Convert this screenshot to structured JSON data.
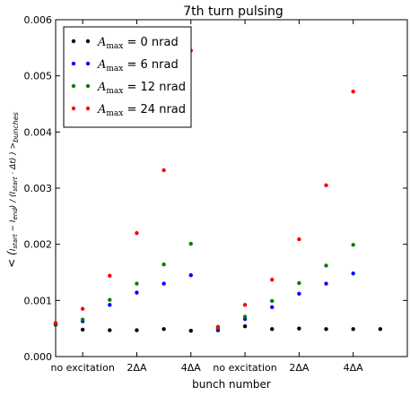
{
  "chart_data": {
    "type": "scatter",
    "title": "7th turn pulsing",
    "xlabel": "bunch number",
    "ylabel": "< (I_start - I_end) / (I_start · Δt) >_bunches",
    "ylim": [
      0,
      0.006
    ],
    "xlim": [
      0,
      13
    ],
    "y_ticks": [
      "0.000",
      "0.001",
      "0.002",
      "0.003",
      "0.004",
      "0.005",
      "0.006"
    ],
    "x_ticks": [
      {
        "x": 1,
        "label": "no excitation"
      },
      {
        "x": 3,
        "label": "2ΔA"
      },
      {
        "x": 5,
        "label": "4ΔA"
      },
      {
        "x": 7,
        "label": "no excitation"
      },
      {
        "x": 9,
        "label": "2ΔA"
      },
      {
        "x": 11,
        "label": "4ΔA"
      }
    ],
    "grid": false,
    "legend_position": "top-left",
    "x": [
      0,
      1,
      2,
      3,
      4,
      5,
      6,
      7,
      8,
      9,
      10,
      11,
      12
    ],
    "series": [
      {
        "name": "A_max = 0 nrad",
        "color": "#000000",
        "values": [
          0.00057,
          0.00048,
          0.00047,
          0.00047,
          0.00049,
          0.00046,
          0.00047,
          0.00054,
          0.00049,
          0.0005,
          0.00049,
          0.00049,
          0.00049
        ]
      },
      {
        "name": "A_max = 6 nrad",
        "color": "#0000ff",
        "values": [
          0.00058,
          0.00063,
          0.00092,
          0.00114,
          0.0013,
          0.00145,
          0.00049,
          0.00067,
          0.00088,
          0.00112,
          0.0013,
          0.00148,
          null
        ]
      },
      {
        "name": "A_max = 12 nrad",
        "color": "#008000",
        "values": [
          0.00059,
          0.00066,
          0.00101,
          0.0013,
          0.00164,
          0.00201,
          0.00051,
          0.00071,
          0.00099,
          0.00131,
          0.00162,
          0.00199,
          null
        ]
      },
      {
        "name": "A_max = 24 nrad",
        "color": "#ff0000",
        "values": [
          0.0006,
          0.00085,
          0.00144,
          0.0022,
          0.00332,
          0.00545,
          0.00053,
          0.00092,
          0.00137,
          0.00209,
          0.00305,
          0.00472,
          null
        ]
      }
    ],
    "legend": [
      {
        "prefix": "A",
        "sub": "max",
        "rest": " = 0 nrad",
        "color": "#000000"
      },
      {
        "prefix": "A",
        "sub": "max",
        "rest": " = 6 nrad",
        "color": "#0000ff"
      },
      {
        "prefix": "A",
        "sub": "max",
        "rest": " = 12 nrad",
        "color": "#008000"
      },
      {
        "prefix": "A",
        "sub": "max",
        "rest": " = 24 nrad",
        "color": "#ff0000"
      }
    ]
  }
}
